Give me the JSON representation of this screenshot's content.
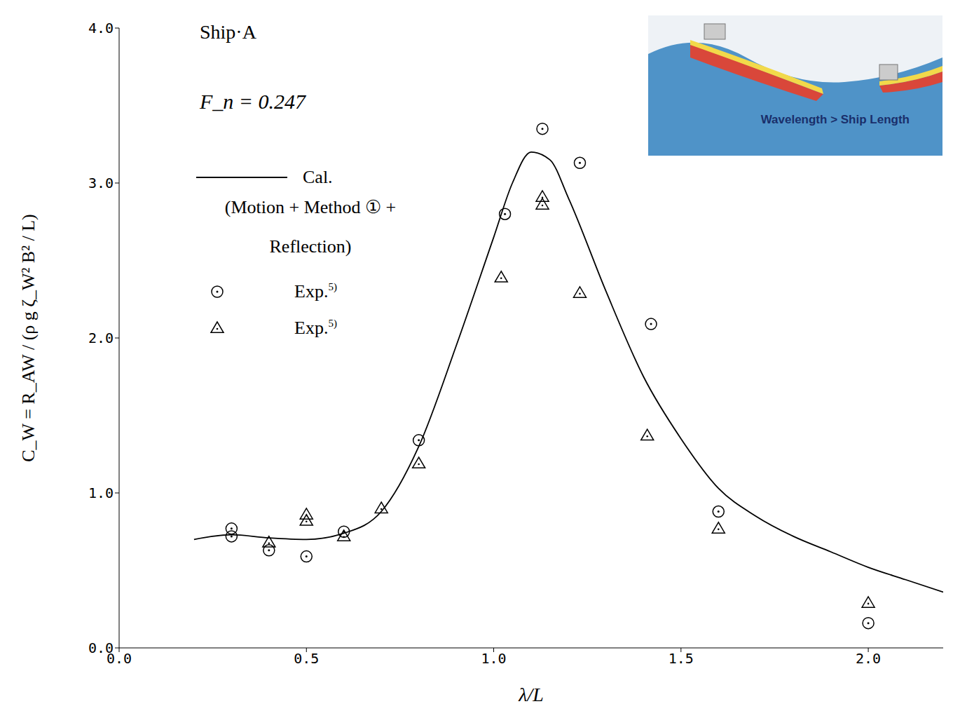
{
  "chart_data": {
    "type": "line",
    "title": "Ship·A",
    "subtitle": "F_n = 0.247",
    "x_label": "λ/L",
    "y_label": "C_W = R_AW / (ρ g ζ_W² B² / L)",
    "annotations": [
      "Wavelength > Ship Length"
    ],
    "xlim": [
      0,
      2.2
    ],
    "ylim": [
      0,
      4.0
    ],
    "xticks": [
      {
        "value": 0,
        "label": "0.0"
      },
      {
        "value": 0.5,
        "label": "0.5"
      },
      {
        "value": 1,
        "label": "1.0"
      },
      {
        "value": 1.5,
        "label": "1.5"
      },
      {
        "value": 2,
        "label": "2.0"
      }
    ],
    "yticks": [
      {
        "value": 0,
        "label": "0.0"
      },
      {
        "value": 1,
        "label": "1.0"
      },
      {
        "value": 2,
        "label": "2.0"
      },
      {
        "value": 3,
        "label": "3.0"
      },
      {
        "value": 4,
        "label": "4.0"
      }
    ],
    "legend": "upper left",
    "series": [
      {
        "name": "Cal. (Motion + Method ① + Reflection)",
        "type": "line",
        "line_style": "solid",
        "color": "#000000",
        "x": [
          0.2,
          0.3,
          0.4,
          0.5,
          0.6,
          0.7,
          0.8,
          0.9,
          1.0,
          1.05,
          1.1,
          1.15,
          1.2,
          1.3,
          1.4,
          1.5,
          1.6,
          1.7,
          1.8,
          1.9,
          2.0,
          2.1,
          2.2
        ],
        "values": [
          0.7,
          0.73,
          0.71,
          0.7,
          0.74,
          0.88,
          1.3,
          1.95,
          2.65,
          3.0,
          3.2,
          3.15,
          2.9,
          2.3,
          1.75,
          1.35,
          1.03,
          0.85,
          0.72,
          0.62,
          0.52,
          0.44,
          0.36
        ]
      },
      {
        "name": "Exp. 5)",
        "type": "scatter",
        "marker": "circle",
        "color": "#000000",
        "x": [
          0.3,
          0.3,
          0.4,
          0.5,
          0.6,
          0.8,
          1.03,
          1.13,
          1.23,
          1.42,
          1.6,
          2.0
        ],
        "values": [
          0.77,
          0.72,
          0.63,
          0.59,
          0.75,
          1.34,
          2.8,
          3.35,
          3.13,
          2.09,
          0.88,
          0.16
        ]
      },
      {
        "name": "Exp. 5)",
        "type": "scatter",
        "marker": "triangle",
        "color": "#000000",
        "x": [
          0.4,
          0.5,
          0.5,
          0.6,
          0.7,
          0.8,
          1.02,
          1.13,
          1.13,
          1.23,
          1.41,
          1.6,
          2.0
        ],
        "values": [
          0.68,
          0.86,
          0.82,
          0.72,
          0.9,
          1.19,
          2.39,
          2.91,
          2.86,
          2.29,
          1.37,
          0.77,
          0.29
        ]
      }
    ]
  }
}
